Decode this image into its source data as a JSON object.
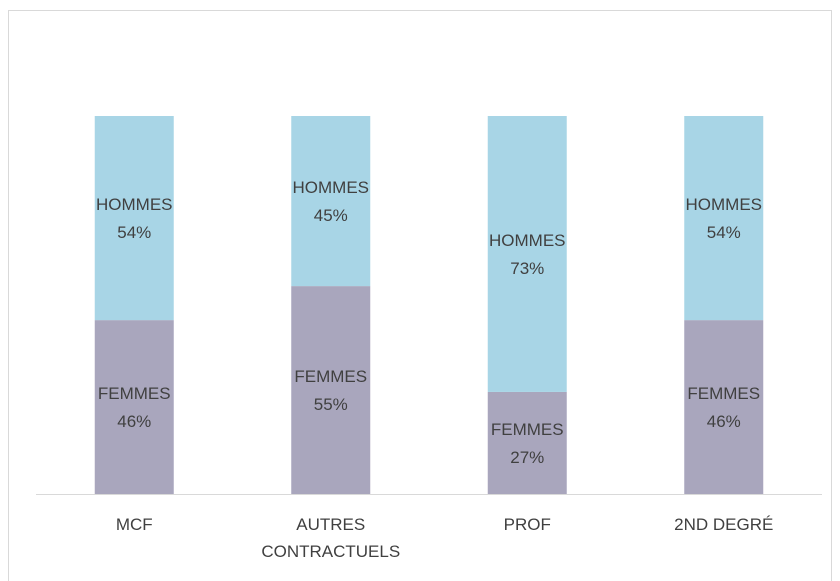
{
  "chart_data": {
    "type": "stacked_bar",
    "categories": [
      "MCF",
      "AUTRES CONTRACTUELS",
      "PROF",
      "2ND DEGRÉ"
    ],
    "series": [
      {
        "name": "FEMMES",
        "color": "#a9a6bd",
        "values": [
          46,
          55,
          27,
          46
        ],
        "value_labels": [
          "46%",
          "55%",
          "27%",
          "46%"
        ]
      },
      {
        "name": "HOMMES",
        "color": "#a8d5e6",
        "values": [
          54,
          45,
          73,
          54
        ],
        "value_labels": [
          "54%",
          "45%",
          "73%",
          "54%"
        ]
      }
    ],
    "ylim": [
      0,
      100
    ]
  }
}
